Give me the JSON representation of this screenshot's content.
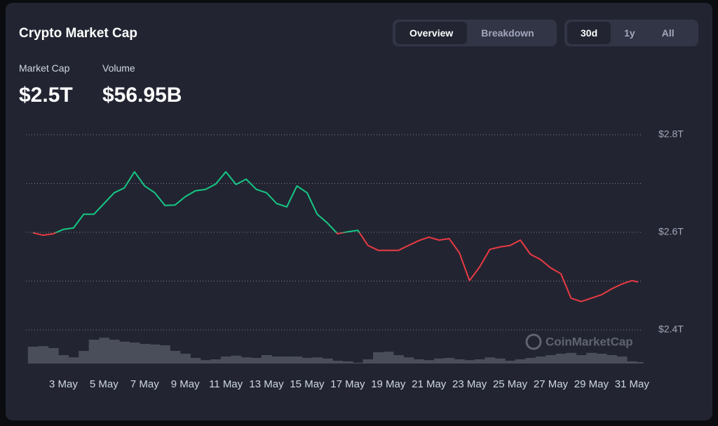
{
  "header": {
    "title": "Crypto Market Cap"
  },
  "tabs": [
    {
      "label": "Overview",
      "active": true
    },
    {
      "label": "Breakdown",
      "active": false
    }
  ],
  "ranges": [
    {
      "label": "30d",
      "active": true
    },
    {
      "label": "1y",
      "active": false
    },
    {
      "label": "All",
      "active": false
    }
  ],
  "stats": [
    {
      "label": "Market Cap",
      "value": "$2.5T"
    },
    {
      "label": "Volume",
      "value": "$56.95B"
    }
  ],
  "watermark": "CoinMarketCap",
  "chart_data": {
    "type": "line",
    "x": [
      1.5,
      2,
      2.5,
      3,
      3.5,
      4,
      4.5,
      5,
      5.5,
      6,
      6.5,
      7,
      7.5,
      8,
      8.5,
      9,
      9.5,
      10,
      10.5,
      11,
      11.5,
      12,
      12.5,
      13,
      13.5,
      14,
      14.5,
      15,
      15.5,
      16,
      16.5,
      17,
      17.5,
      18,
      18.5,
      19,
      19.5,
      20,
      20.5,
      21,
      21.5,
      22,
      22.5,
      23,
      23.5,
      24,
      24.5,
      25,
      25.5,
      26,
      26.5,
      27,
      27.5,
      28,
      28.5,
      29,
      29.5,
      30,
      30.5,
      31,
      31.3
    ],
    "values": [
      2.599,
      2.594,
      2.597,
      2.606,
      2.609,
      2.637,
      2.637,
      2.659,
      2.681,
      2.691,
      2.724,
      2.695,
      2.681,
      2.655,
      2.656,
      2.673,
      2.685,
      2.688,
      2.699,
      2.724,
      2.698,
      2.709,
      2.688,
      2.681,
      2.659,
      2.652,
      2.695,
      2.681,
      2.637,
      2.619,
      2.597,
      2.601,
      2.604,
      2.573,
      2.563,
      2.563,
      2.563,
      2.573,
      2.583,
      2.59,
      2.584,
      2.587,
      2.558,
      2.501,
      2.529,
      2.565,
      2.57,
      2.573,
      2.584,
      2.555,
      2.544,
      2.527,
      2.515,
      2.465,
      2.458,
      2.465,
      2.472,
      2.484,
      2.494,
      2.501,
      2.498
    ],
    "up_color": "#16c784",
    "down_color": "#ea3943",
    "volume": {
      "color": "#4a4d5a",
      "values": [
        60,
        62,
        55,
        30,
        22,
        45,
        85,
        92,
        85,
        78,
        75,
        70,
        68,
        65,
        45,
        35,
        20,
        12,
        15,
        25,
        28,
        22,
        20,
        30,
        25,
        25,
        25,
        20,
        22,
        18,
        10,
        8,
        3,
        15,
        40,
        42,
        30,
        22,
        15,
        12,
        18,
        20,
        15,
        12,
        15,
        22,
        18,
        10,
        15,
        20,
        25,
        30,
        35,
        38,
        30,
        38,
        35,
        30,
        25,
        8,
        5
      ]
    },
    "volume_lim": [
      0,
      100
    ],
    "xlim": [
      1.5,
      31.3
    ],
    "xticks": [
      {
        "value": 3,
        "label": "3 May"
      },
      {
        "value": 5,
        "label": "5 May"
      },
      {
        "value": 7,
        "label": "7 May"
      },
      {
        "value": 9,
        "label": "9 May"
      },
      {
        "value": 11,
        "label": "11 May"
      },
      {
        "value": 13,
        "label": "13 May"
      },
      {
        "value": 15,
        "label": "15 May"
      },
      {
        "value": 17,
        "label": "17 May"
      },
      {
        "value": 19,
        "label": "19 May"
      },
      {
        "value": 21,
        "label": "21 May"
      },
      {
        "value": 23,
        "label": "23 May"
      },
      {
        "value": 25,
        "label": "25 May"
      },
      {
        "value": 27,
        "label": "27 May"
      },
      {
        "value": 29,
        "label": "29 May"
      },
      {
        "value": 31,
        "label": "31 May"
      }
    ],
    "ylim": [
      2.4,
      2.8
    ],
    "yticks": [
      {
        "value": 2.4,
        "label": "$2.4T"
      },
      {
        "value": 2.5,
        "label": null
      },
      {
        "value": 2.6,
        "label": "$2.6T"
      },
      {
        "value": 2.7,
        "label": null
      },
      {
        "value": 2.8,
        "label": "$2.8T"
      }
    ],
    "grid": true
  }
}
